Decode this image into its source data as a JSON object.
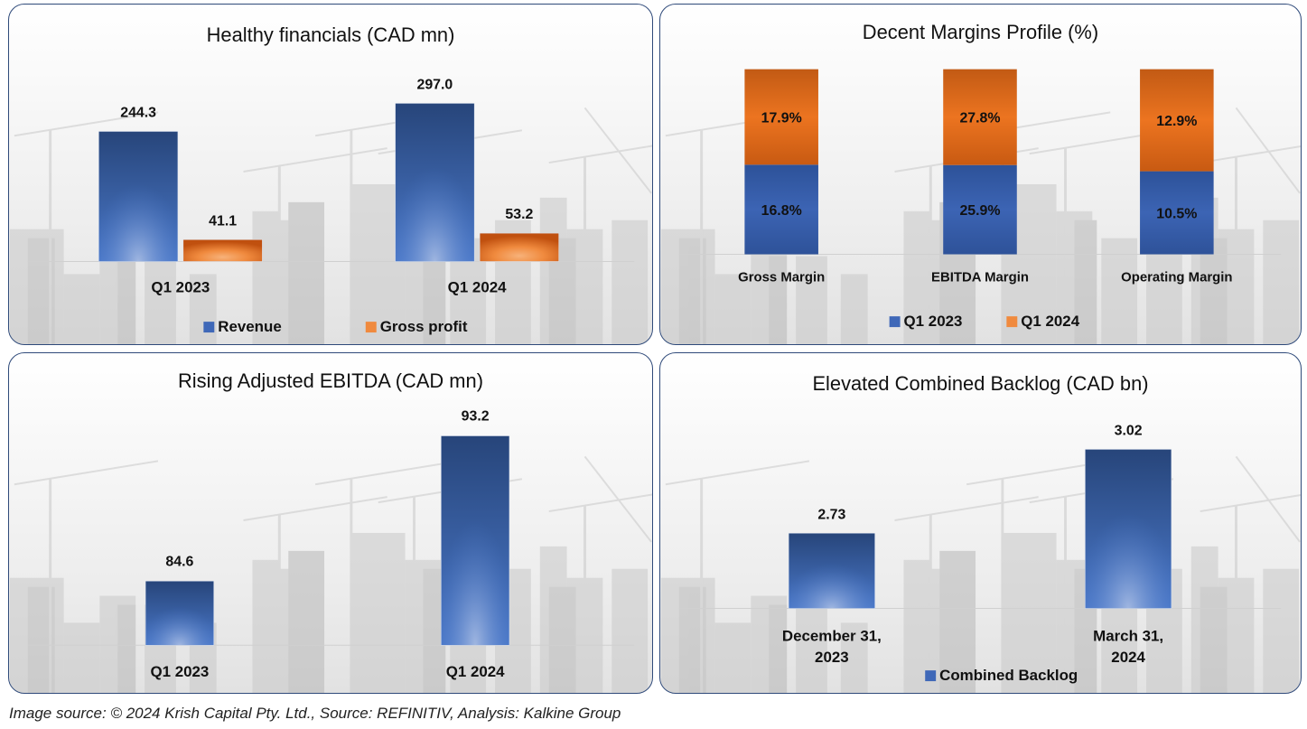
{
  "colors": {
    "blue_dark": "#27457a",
    "blue_light": "#4a78c9",
    "orange_dark": "#c0500f",
    "orange_light": "#f08a3e",
    "border": "#2f4a7a"
  },
  "footer": {
    "source_text": "Image source: © 2024 Krish Capital Pty. Ltd., Source: REFINITIV, Analysis: Kalkine Group"
  },
  "chart_data": [
    {
      "id": "healthy-financials",
      "type": "bar",
      "title": "Healthy financials (CAD mn)",
      "categories": [
        "Q1 2023",
        "Q1 2024"
      ],
      "series": [
        {
          "name": "Revenue",
          "values": [
            244.3,
            297.0
          ],
          "labels": [
            "244.3",
            "297.0"
          ],
          "color": "blue"
        },
        {
          "name": "Gross profit",
          "values": [
            41.1,
            53.2
          ],
          "labels": [
            "41.1",
            "53.2"
          ],
          "color": "orange"
        }
      ],
      "xlabel": "",
      "ylabel": "",
      "ylim": [
        0,
        310
      ],
      "grid": false,
      "legend": "bottom"
    },
    {
      "id": "margins-profile",
      "type": "bar",
      "stacked": true,
      "title": "Decent Margins Profile (%)",
      "categories": [
        "Gross Margin",
        "EBITDA Margin",
        "Operating Margin"
      ],
      "series": [
        {
          "name": "Q1 2023",
          "values": [
            16.8,
            25.9,
            10.5
          ],
          "labels": [
            "16.8%",
            "25.9%",
            "10.5%"
          ],
          "color": "blue"
        },
        {
          "name": "Q1 2024",
          "values": [
            17.9,
            27.8,
            12.9
          ],
          "labels": [
            "17.9%",
            "27.8%",
            "12.9%"
          ],
          "color": "orange"
        }
      ],
      "xlabel": "",
      "ylabel": "",
      "ylim": [
        0,
        100
      ],
      "note": "100% stacked columns",
      "grid": false,
      "legend": "bottom"
    },
    {
      "id": "adjusted-ebitda",
      "type": "bar",
      "title": "Rising Adjusted EBITDA (CAD mn)",
      "categories": [
        "Q1 2023",
        "Q1 2024"
      ],
      "series": [
        {
          "name": "Adjusted EBITDA",
          "values": [
            84.6,
            93.2
          ],
          "labels": [
            "84.6",
            "93.2"
          ],
          "color": "blue"
        }
      ],
      "xlabel": "",
      "ylabel": "",
      "ylim": [
        70,
        95
      ],
      "grid": false,
      "legend": "none"
    },
    {
      "id": "combined-backlog",
      "type": "bar",
      "title": "Elevated Combined Backlog (CAD bn)",
      "categories": [
        "December 31, 2023",
        "March 31, 2024"
      ],
      "category_lines": [
        [
          "December 31,",
          "2023"
        ],
        [
          "March 31,",
          "2024"
        ]
      ],
      "series": [
        {
          "name": "Combined Backlog",
          "values": [
            2.73,
            3.02
          ],
          "labels": [
            "2.73",
            "3.02"
          ],
          "color": "blue"
        }
      ],
      "xlabel": "",
      "ylabel": "",
      "ylim": [
        2.4,
        3.1
      ],
      "grid": false,
      "legend": "bottom"
    }
  ]
}
